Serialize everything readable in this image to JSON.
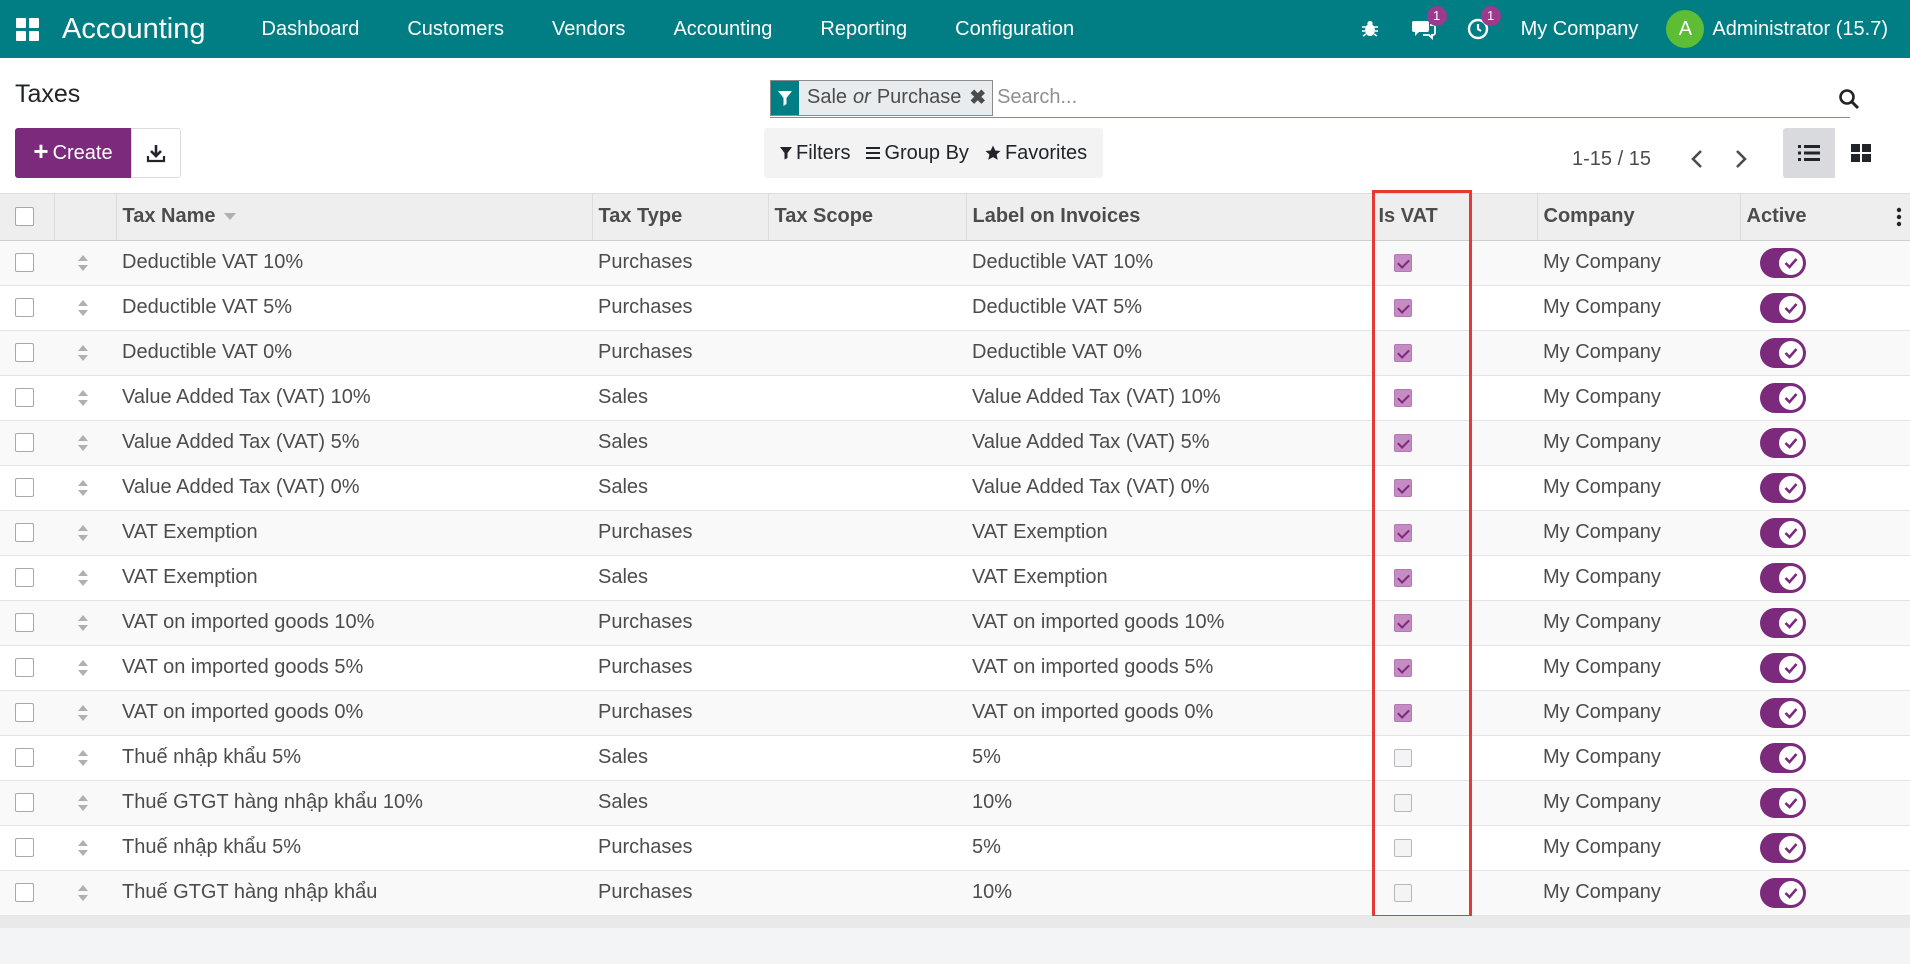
{
  "navbar": {
    "app_name": "Accounting",
    "menu": [
      "Dashboard",
      "Customers",
      "Vendors",
      "Accounting",
      "Reporting",
      "Configuration"
    ],
    "messages_badge": "1",
    "activities_badge": "1",
    "company": "My Company",
    "user_initial": "A",
    "user_name": "Administrator (15.7)"
  },
  "control_panel": {
    "title": "Taxes",
    "create_label": "Create",
    "facet": {
      "value1": "Sale",
      "separator": "or",
      "value2": "Purchase"
    },
    "search_placeholder": "Search...",
    "filters_label": "Filters",
    "groupby_label": "Group By",
    "favorites_label": "Favorites",
    "pager": "1-15 / 15"
  },
  "table": {
    "columns": [
      "Tax Name",
      "Tax Type",
      "Tax Scope",
      "Label on Invoices",
      "Is VAT",
      "Company",
      "Active"
    ],
    "rows": [
      {
        "name": "Deductible VAT 10%",
        "type": "Purchases",
        "scope": "",
        "label": "Deductible VAT 10%",
        "is_vat": true,
        "company": "My Company",
        "active": true
      },
      {
        "name": "Deductible VAT 5%",
        "type": "Purchases",
        "scope": "",
        "label": "Deductible VAT 5%",
        "is_vat": true,
        "company": "My Company",
        "active": true
      },
      {
        "name": "Deductible VAT 0%",
        "type": "Purchases",
        "scope": "",
        "label": "Deductible VAT 0%",
        "is_vat": true,
        "company": "My Company",
        "active": true
      },
      {
        "name": "Value Added Tax (VAT) 10%",
        "type": "Sales",
        "scope": "",
        "label": "Value Added Tax (VAT) 10%",
        "is_vat": true,
        "company": "My Company",
        "active": true
      },
      {
        "name": "Value Added Tax (VAT) 5%",
        "type": "Sales",
        "scope": "",
        "label": "Value Added Tax (VAT) 5%",
        "is_vat": true,
        "company": "My Company",
        "active": true
      },
      {
        "name": "Value Added Tax (VAT) 0%",
        "type": "Sales",
        "scope": "",
        "label": "Value Added Tax (VAT) 0%",
        "is_vat": true,
        "company": "My Company",
        "active": true
      },
      {
        "name": "VAT Exemption",
        "type": "Purchases",
        "scope": "",
        "label": "VAT Exemption",
        "is_vat": true,
        "company": "My Company",
        "active": true
      },
      {
        "name": "VAT Exemption",
        "type": "Sales",
        "scope": "",
        "label": "VAT Exemption",
        "is_vat": true,
        "company": "My Company",
        "active": true
      },
      {
        "name": "VAT on imported goods 10%",
        "type": "Purchases",
        "scope": "",
        "label": "VAT on imported goods 10%",
        "is_vat": true,
        "company": "My Company",
        "active": true
      },
      {
        "name": "VAT on imported goods 5%",
        "type": "Purchases",
        "scope": "",
        "label": "VAT on imported goods 5%",
        "is_vat": true,
        "company": "My Company",
        "active": true
      },
      {
        "name": "VAT on imported goods 0%",
        "type": "Purchases",
        "scope": "",
        "label": "VAT on imported goods 0%",
        "is_vat": true,
        "company": "My Company",
        "active": true
      },
      {
        "name": "Thuế nhập khẩu 5%",
        "type": "Sales",
        "scope": "",
        "label": "5%",
        "is_vat": false,
        "company": "My Company",
        "active": true
      },
      {
        "name": "Thuế GTGT hàng nhập khẩu 10%",
        "type": "Sales",
        "scope": "",
        "label": "10%",
        "is_vat": false,
        "company": "My Company",
        "active": true
      },
      {
        "name": "Thuế nhập khẩu 5%",
        "type": "Purchases",
        "scope": "",
        "label": "5%",
        "is_vat": false,
        "company": "My Company",
        "active": true
      },
      {
        "name": "Thuế GTGT hàng nhập khẩu",
        "type": "Purchases",
        "scope": "",
        "label": "10%",
        "is_vat": false,
        "company": "My Company",
        "active": true
      }
    ]
  },
  "colors": {
    "navbar": "#017e84",
    "primary": "#7c2a7c",
    "highlight": "#e53935"
  }
}
